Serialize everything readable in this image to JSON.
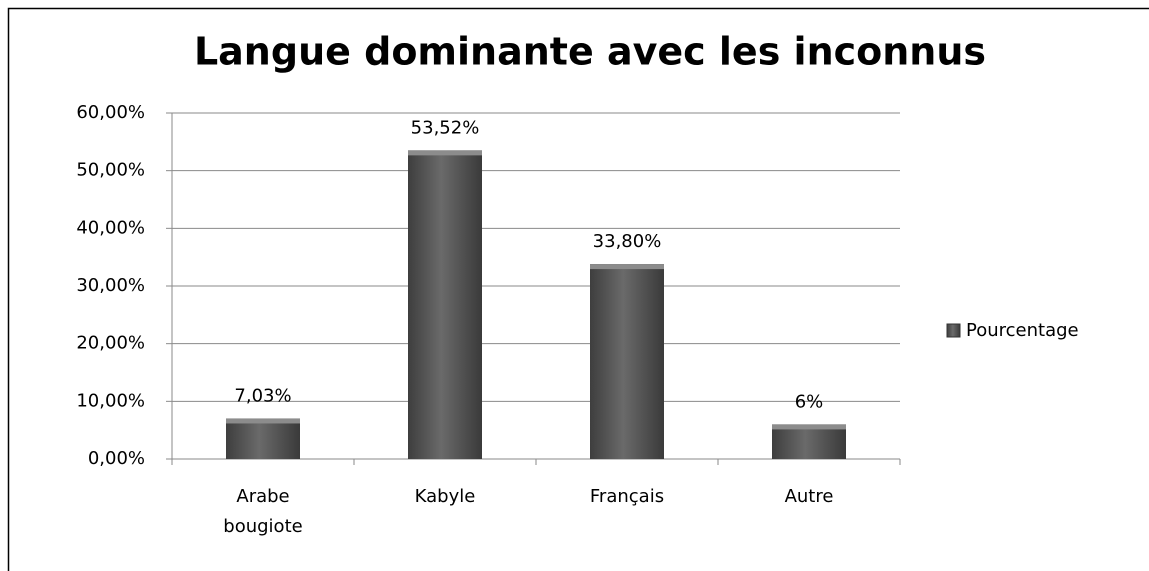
{
  "chart_data": {
    "type": "bar",
    "title": "Langue dominante avec les inconnus",
    "categories": [
      "Arabe bougiote",
      "Kabyle",
      "Français",
      "Autre"
    ],
    "values": [
      7.03,
      53.52,
      33.8,
      6
    ],
    "value_labels": [
      "7,03%",
      "53,52%",
      "33,80%",
      "6%"
    ],
    "color": "#5a5a5a",
    "ylim": [
      0,
      60
    ],
    "yticks": [
      {
        "value": 0,
        "label": "0,00%"
      },
      {
        "value": 10,
        "label": "10,00%"
      },
      {
        "value": 20,
        "label": "20,00%"
      },
      {
        "value": 30,
        "label": "30,00%"
      },
      {
        "value": 40,
        "label": "40,00%"
      },
      {
        "value": 50,
        "label": "50,00%"
      },
      {
        "value": 60,
        "label": "60,00%"
      }
    ],
    "grid": true,
    "legend": {
      "position": "right",
      "label": "Pourcentage"
    }
  }
}
